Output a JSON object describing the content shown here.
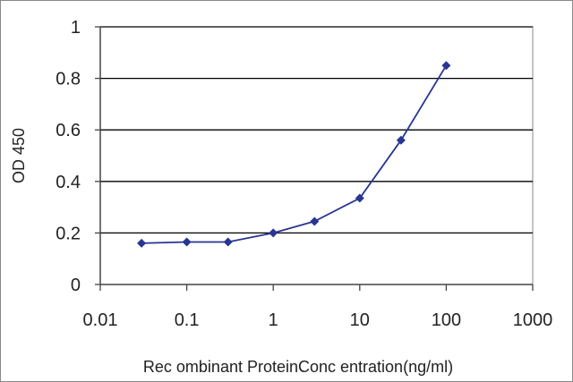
{
  "chart_data": {
    "type": "line",
    "title": "",
    "xlabel": "Rec ombinant  ProteinConc entration(ng/ml)",
    "ylabel": "OD 450",
    "x_scale": "log",
    "xlim": [
      0.01,
      1000
    ],
    "ylim": [
      0,
      1
    ],
    "x_ticks": [
      0.01,
      0.1,
      1,
      10,
      100,
      1000
    ],
    "x_tick_labels": [
      "0.01",
      "0.1",
      "1",
      "10",
      "100",
      "1000"
    ],
    "y_ticks": [
      0,
      0.2,
      0.4,
      0.6,
      0.8,
      1
    ],
    "y_tick_labels": [
      "0",
      "0.2",
      "0.4",
      "0.6",
      "0.8",
      "1"
    ],
    "grid": "horizontal",
    "legend": "none",
    "colors": {
      "series": "#283593",
      "grid": "#000000",
      "plot_background": "#ffffff"
    },
    "series": [
      {
        "x": [
          0.03,
          0.1,
          0.3,
          1,
          3,
          10,
          30,
          100
        ],
        "y": [
          0.16,
          0.165,
          0.165,
          0.2,
          0.245,
          0.335,
          0.56,
          0.85
        ]
      }
    ]
  }
}
